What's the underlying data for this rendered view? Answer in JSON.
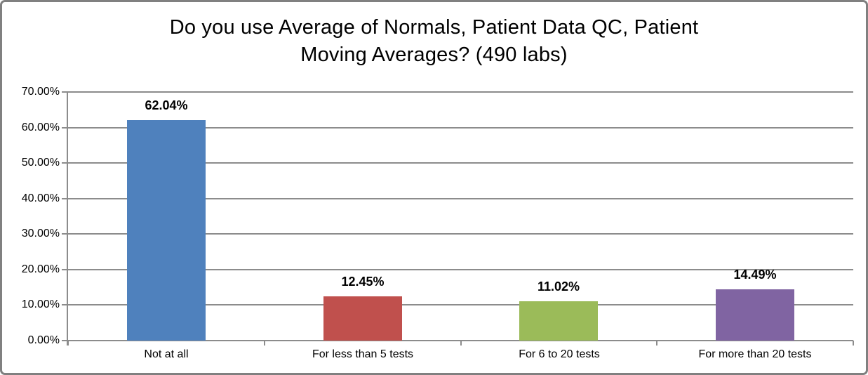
{
  "chart_data": {
    "type": "bar",
    "title": "Do you use Average of Normals, Patient Data QC, Patient Moving Averages? (490 labs)",
    "title_lines": [
      "Do you use Average of Normals, Patient Data QC, Patient",
      "Moving Averages? (490 labs)"
    ],
    "categories": [
      "Not at all",
      "For less than 5 tests",
      "For 6 to 20 tests",
      "For more than 20 tests"
    ],
    "values": [
      62.04,
      12.45,
      11.02,
      14.49
    ],
    "data_labels": [
      "62.04%",
      "12.45%",
      "11.02%",
      "14.49%"
    ],
    "bar_colors": [
      "#4F81BD",
      "#C0504D",
      "#9BBB59",
      "#8064A2"
    ],
    "xlabel": "",
    "ylabel": "",
    "y_axis": {
      "min": 0,
      "max": 70,
      "step": 10,
      "tick_labels": [
        "0.00%",
        "10.00%",
        "20.00%",
        "30.00%",
        "40.00%",
        "50.00%",
        "60.00%",
        "70.00%"
      ]
    },
    "ylim": [
      0,
      70
    ],
    "grid": true,
    "legend": false,
    "colors": {
      "gridline": "#8C8C8C",
      "axis": "#8C8C8C",
      "text": "#000000",
      "frame_border": "#808080",
      "background": "#FFFFFF"
    }
  }
}
